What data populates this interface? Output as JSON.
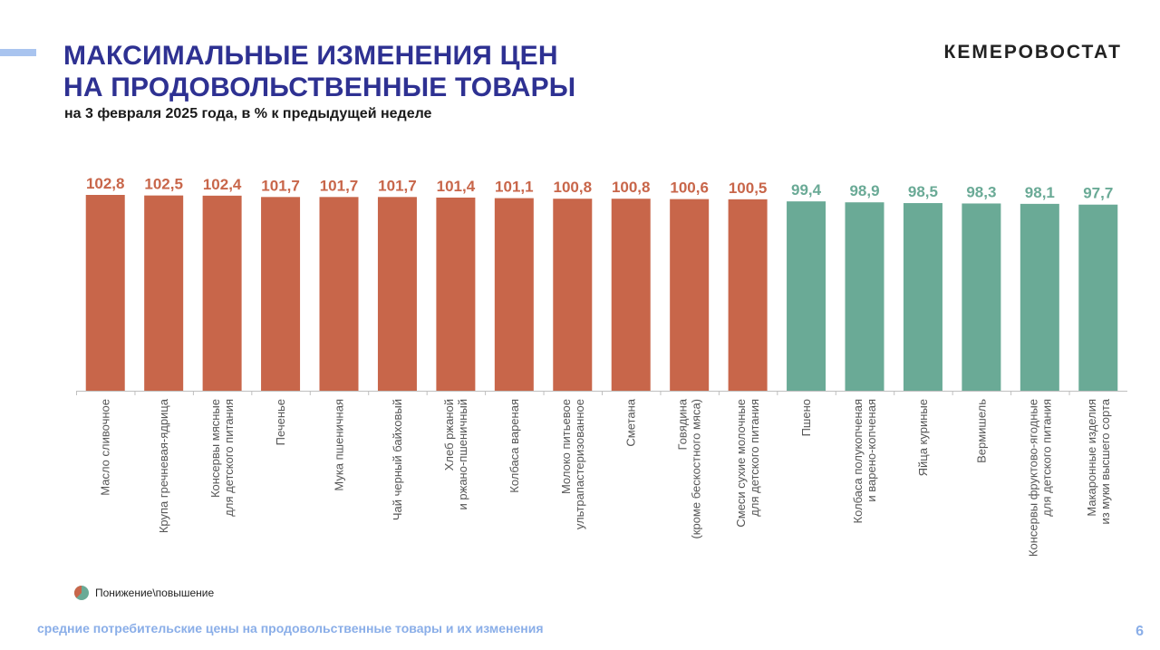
{
  "header": {
    "title_line1": "МАКСИМАЛЬНЫЕ ИЗМЕНЕНИЯ ЦЕН",
    "title_line2": "НА ПРОДОВОЛЬСТВЕННЫЕ ТОВАРЫ",
    "subtitle": "на 3 февраля 2025 года, в % к предыдущей неделе",
    "logo": "КЕМЕРОВОСТАТ"
  },
  "chart_data": {
    "type": "bar",
    "categories": [
      [
        "Масло сливочное"
      ],
      [
        "Крупа гречневая-ядрица"
      ],
      [
        "Консервы мясные",
        "для детского питания"
      ],
      [
        "Печенье"
      ],
      [
        "Мука пшеничная"
      ],
      [
        "Чай черный байховый"
      ],
      [
        "Хлеб ржаной",
        "и ржано-пшеничный"
      ],
      [
        "Колбаса вареная"
      ],
      [
        "Молоко питьевое",
        "ультрапастеризованное"
      ],
      [
        "Сметана"
      ],
      [
        "Говядина",
        "(кроме бескостного мяса)"
      ],
      [
        "Смеси сухие молочные",
        "для детского питания"
      ],
      [
        "Пшено"
      ],
      [
        "Колбаса полукопченая",
        "и варено-копченая"
      ],
      [
        "Яйца куриные"
      ],
      [
        "Вермишель"
      ],
      [
        "Консервы фруктово-ягодные",
        "для детского питания"
      ],
      [
        "Макаронные изделия",
        "из муки высшего сорта"
      ]
    ],
    "values": [
      102.8,
      102.5,
      102.4,
      101.7,
      101.7,
      101.7,
      101.4,
      101.1,
      100.8,
      100.8,
      100.6,
      100.5,
      99.4,
      98.9,
      98.5,
      98.3,
      98.1,
      97.7
    ],
    "value_labels": [
      "102,8",
      "102,5",
      "102,4",
      "101,7",
      "101,7",
      "101,7",
      "101,4",
      "101,1",
      "100,8",
      "100,8",
      "100,6",
      "100,5",
      "99,4",
      "98,9",
      "98,5",
      "98,3",
      "98,1",
      "97,7"
    ],
    "baseline": 0,
    "ylim": [
      0,
      102.8
    ],
    "colors": {
      "increase": "#c8664a",
      "decrease": "#6aaa96",
      "axis": "#bfbfbf"
    },
    "legend": {
      "label": "Понижение\\повышение",
      "placement": "bottom-left"
    }
  },
  "footer": {
    "text": "средние потребительские цены на продовольственные товары и их изменения",
    "page_number": "6"
  }
}
